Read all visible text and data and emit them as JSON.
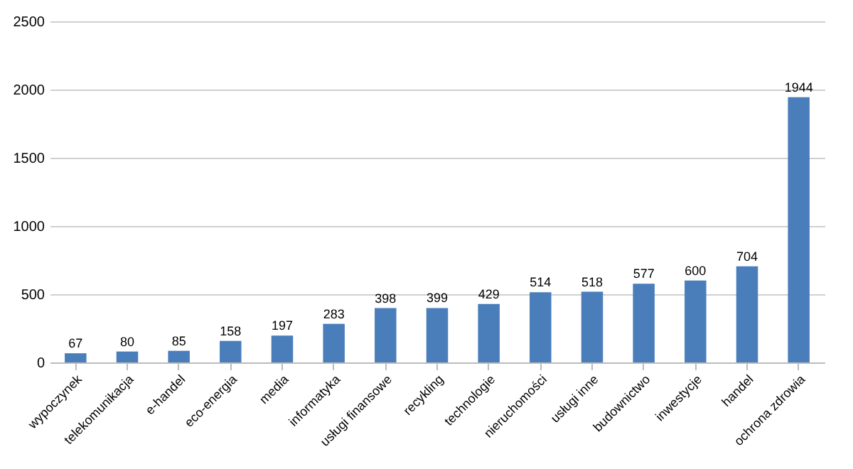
{
  "chart_data": {
    "type": "bar",
    "categories": [
      "wypoczynek",
      "telekomunikacja",
      "e-handel",
      "eco-energia",
      "media",
      "informatyka",
      "usługi finansowe",
      "recykling",
      "technologie",
      "nieruchomości",
      "usługi inne",
      "budownictwo",
      "inwestycje",
      "handel",
      "ochrona zdrowia"
    ],
    "values": [
      67,
      80,
      85,
      158,
      197,
      283,
      398,
      399,
      429,
      514,
      518,
      577,
      600,
      704,
      1944
    ],
    "color": "#4a7ebb",
    "ylim": [
      0,
      2500
    ],
    "yticks": [
      0,
      500,
      1000,
      1500,
      2000,
      2500
    ],
    "grid": "y",
    "data_labels": true
  }
}
